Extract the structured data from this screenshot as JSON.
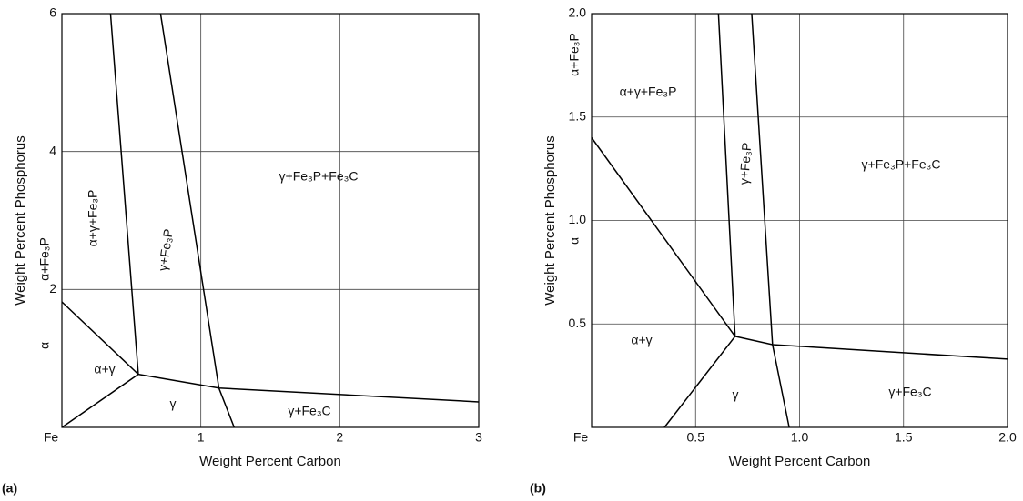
{
  "chart_data": [
    {
      "type": "line",
      "panel_label": "(a)",
      "xlabel": "Weight Percent Carbon",
      "ylabel": "Weight Percent Phosphorus",
      "xlim": [
        0,
        3
      ],
      "ylim": [
        0,
        6
      ],
      "xticks": [
        {
          "value": 0,
          "label": "Fe"
        },
        1,
        2,
        3
      ],
      "yticks": [
        2,
        4,
        6
      ],
      "grid": true,
      "color": "#000000",
      "series": [
        {
          "x": [
            0,
            0.55
          ],
          "values": [
            1.82,
            0.77
          ]
        },
        {
          "x": [
            0,
            0.55
          ],
          "values": [
            0,
            0.77
          ]
        },
        {
          "x": [
            0.35,
            0.55
          ],
          "values": [
            6,
            0.77
          ]
        },
        {
          "x": [
            0.71,
            1.13,
            1.24
          ],
          "values": [
            6,
            0.57,
            0
          ]
        },
        {
          "x": [
            0.55,
            1.13,
            3
          ],
          "values": [
            0.77,
            0.57,
            0.37
          ]
        }
      ],
      "annotations": [
        "α+γ+Fe₃P",
        "γ+Fe₃P",
        "γ+Fe₃P+Fe₃C",
        "α+Fe₃P",
        "α",
        "α+γ",
        "γ",
        "γ+Fe₃C"
      ]
    },
    {
      "type": "line",
      "panel_label": "(b)",
      "xlabel": "Weight Percent Carbon",
      "ylabel": "Weight Percent Phosphorus",
      "xlim": [
        0,
        2
      ],
      "ylim": [
        0,
        2
      ],
      "xticks": [
        {
          "value": 0,
          "label": "Fe"
        },
        0.5,
        {
          "value": 1,
          "label": "1.0"
        },
        1.5,
        {
          "value": 2,
          "label": "2.0"
        }
      ],
      "yticks": [
        0.5,
        {
          "value": 1,
          "label": "1.0"
        },
        1.5,
        {
          "value": 2,
          "label": "2.0"
        }
      ],
      "grid": true,
      "color": "#000000",
      "series": [
        {
          "x": [
            0,
            0.69
          ],
          "values": [
            1.4,
            0.44
          ]
        },
        {
          "x": [
            0.35,
            0.69
          ],
          "values": [
            0,
            0.44
          ]
        },
        {
          "x": [
            0.61,
            0.69
          ],
          "values": [
            2,
            0.44
          ]
        },
        {
          "x": [
            0.77,
            0.87,
            0.95
          ],
          "values": [
            2,
            0.4,
            0
          ]
        },
        {
          "x": [
            0.69,
            0.87,
            2
          ],
          "values": [
            0.44,
            0.4,
            0.33
          ]
        }
      ],
      "annotations": [
        "α+Fe₃P",
        "α+γ+Fe₃P",
        "γ+Fe₃P",
        "γ+Fe₃P+Fe₃C",
        "α",
        "α+γ",
        "γ",
        "γ+Fe₃C"
      ]
    }
  ]
}
